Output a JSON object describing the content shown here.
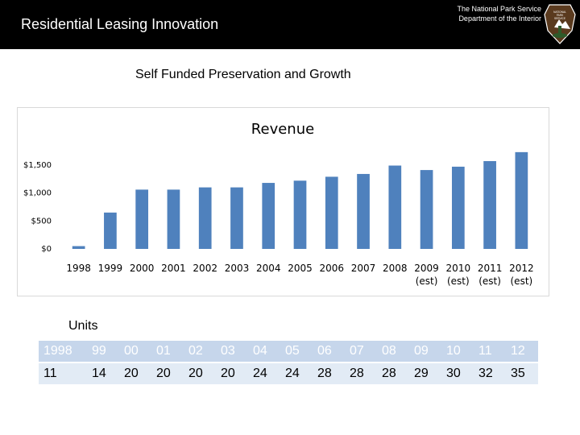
{
  "header": {
    "title": "Residential Leasing Innovation",
    "agency_line1": "The National Park Service",
    "agency_line2": "Department of the Interior",
    "logo_text": "NATIONAL PARK SERVICE"
  },
  "subtitle": "Self Funded Preservation and Growth",
  "colors": {
    "bar": "#4f81bd",
    "header_bg": "#000000",
    "table_head": "#c6d6eb",
    "table_row": "#e2ebf5"
  },
  "chart_data": {
    "type": "bar",
    "title": "Revenue",
    "xlabel": "",
    "ylabel": "",
    "ylim": [
      0,
      1800
    ],
    "yticks": [
      0,
      500,
      1000,
      1500
    ],
    "ytick_labels": [
      "$0",
      "$500",
      "$1,000",
      "$1,500"
    ],
    "categories": [
      "1998",
      "1999",
      "2000",
      "2001",
      "2002",
      "2003",
      "2004",
      "2005",
      "2006",
      "2007",
      "2008",
      "2009",
      "2010",
      "2011",
      "2012"
    ],
    "category_notes": [
      "",
      "",
      "",
      "",
      "",
      "",
      "",
      "",
      "",
      "",
      "",
      "(est)",
      "(est)",
      "(est)",
      "(est)"
    ],
    "values": [
      50,
      650,
      1060,
      1060,
      1100,
      1100,
      1180,
      1220,
      1290,
      1340,
      1490,
      1410,
      1470,
      1570,
      1730
    ]
  },
  "units": {
    "label": "Units",
    "years": [
      "1998",
      "99",
      "00",
      "01",
      "02",
      "03",
      "04",
      "05",
      "06",
      "07",
      "08",
      "09",
      "10",
      "11",
      "12"
    ],
    "counts": [
      "11",
      "14",
      "20",
      "20",
      "20",
      "20",
      "24",
      "24",
      "28",
      "28",
      "28",
      "29",
      "30",
      "32",
      "35"
    ]
  }
}
